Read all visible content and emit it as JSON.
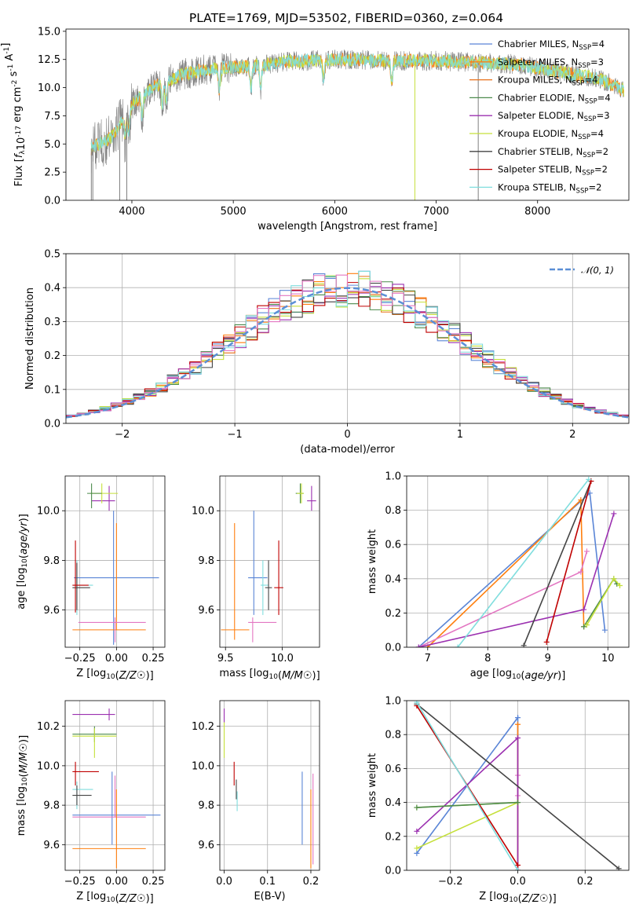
{
  "figure_title": "PLATE=1769, MJD=53502, FIBERID=0360, z=0.064",
  "colors": {
    "Chabrier MILES": "#5a85d6",
    "Salpeter MILES": "#ff7f0e",
    "Kroupa MILES": "#e8711a",
    "Chabrier ELODIE": "#4c8a4c",
    "Salpeter ELODIE": "#9b30b0",
    "Kroupa ELODIE": "#c5e03a",
    "Chabrier STELIB": "#444444",
    "Salpeter STELIB": "#c00000",
    "Kroupa STELIB": "#80dede",
    "pink": "#e377c2",
    "normal": "#5b8fd6",
    "data": "#808080"
  },
  "chart_data": [
    {
      "id": "spectrum",
      "type": "line",
      "title": "PLATE=1769, MJD=53502, FIBERID=0360, z=0.064",
      "xlabel": "wavelength [Angstrom, rest frame]",
      "ylabel": "Flux [f_λ10^-17 erg cm^-2 s^-1 A^-1]",
      "xlim": [
        3350,
        8900
      ],
      "ylim": [
        0,
        15.2
      ],
      "xticks": [
        "4000",
        "5000",
        "6000",
        "7000",
        "8000"
      ],
      "yticks": [
        "0.0",
        "2.5",
        "5.0",
        "7.5",
        "10.0",
        "12.5",
        "15.0"
      ],
      "grid": false,
      "legend_position": "top-right",
      "legend": [
        {
          "label": "Chabrier MILES, N",
          "sub": "SSP",
          "suffix": "=4"
        },
        {
          "label": "Salpeter MILES, N",
          "sub": "SSP",
          "suffix": "=3"
        },
        {
          "label": "Kroupa MILES, N",
          "sub": "SSP",
          "suffix": "=4"
        },
        {
          "label": "Chabrier ELODIE, N",
          "sub": "SSP",
          "suffix": "=4"
        },
        {
          "label": "Salpeter ELODIE, N",
          "sub": "SSP",
          "suffix": "=3"
        },
        {
          "label": "Kroupa ELODIE, N",
          "sub": "SSP",
          "suffix": "=4"
        },
        {
          "label": "Chabrier STELIB, N",
          "sub": "SSP",
          "suffix": "=2"
        },
        {
          "label": "Salpeter STELIB, N",
          "sub": "SSP",
          "suffix": "=2"
        },
        {
          "label": "Kroupa STELIB, N",
          "sub": "SSP",
          "suffix": "=2"
        }
      ],
      "continuum": {
        "x": [
          3600,
          3800,
          4000,
          4200,
          4500,
          4800,
          5000,
          5200,
          5500,
          6000,
          6500,
          7000,
          7400,
          7800,
          8200,
          8600,
          8850
        ],
        "y": [
          4.6,
          5.6,
          8.5,
          10.0,
          11.2,
          11.7,
          11.8,
          11.9,
          12.3,
          12.5,
          12.4,
          12.4,
          12.2,
          12.1,
          11.4,
          10.8,
          9.8
        ]
      },
      "absorption_lines": [
        3934,
        3969,
        4102,
        4300,
        4340,
        4861,
        5175,
        5270,
        5890,
        6563
      ]
    },
    {
      "id": "residuals",
      "type": "bar",
      "xlabel": "(data-model)/error",
      "ylabel": "Normed distribution",
      "xlim": [
        -2.5,
        2.5
      ],
      "ylim": [
        0,
        0.5
      ],
      "xticks": [
        "−2",
        "−1",
        "0",
        "1",
        "2"
      ],
      "yticks": [
        "0.0",
        "0.1",
        "0.2",
        "0.3",
        "0.4",
        "0.5"
      ],
      "grid": true,
      "legend_position": "top-right",
      "normal_label": "𝒩(0, 1)",
      "bin_width": 0.1
    },
    {
      "id": "age_vs_Z",
      "type": "scatter",
      "xlabel": "Z [log10(Z/Z☉)]",
      "ylabel": "age [log10(age/yr)]",
      "xlim": [
        -0.35,
        0.33
      ],
      "ylim": [
        9.45,
        10.14
      ],
      "xticks": [
        "−0.25",
        "0.00",
        "0.25"
      ],
      "yticks": [
        "9.6",
        "9.8",
        "10.0"
      ],
      "grid": true,
      "crosses": [
        {
          "c": "Chabrier MILES",
          "x": -0.02,
          "y": 9.73,
          "xerr": [
            0.27,
            0.31
          ],
          "yerr": [
            0.27,
            0.27
          ]
        },
        {
          "c": "Salpeter MILES",
          "x": 0.0,
          "y": 9.52,
          "xerr": [
            0.3,
            0.2
          ],
          "yerr": [
            0.0,
            0.43
          ]
        },
        {
          "c": "pink",
          "x": -0.01,
          "y": 9.55,
          "xerr": [
            0.25,
            0.21
          ],
          "yerr": [
            0.08,
            0.02
          ]
        },
        {
          "c": "Salpeter ELODIE",
          "x": -0.05,
          "y": 10.04,
          "xerr": [
            0.12,
            0.04
          ],
          "yerr": [
            0.04,
            0.06
          ]
        },
        {
          "c": "Kroupa ELODIE",
          "x": -0.1,
          "y": 10.07,
          "xerr": [
            0.08,
            0.11
          ],
          "yerr": [
            0.04,
            0.04
          ]
        },
        {
          "c": "Chabrier ELODIE",
          "x": -0.17,
          "y": 10.07,
          "xerr": [
            0.03,
            0.07
          ],
          "yerr": [
            0.06,
            0.04
          ]
        },
        {
          "c": "Kroupa STELIB",
          "x": -0.27,
          "y": 9.7,
          "xerr": [
            0.03,
            0.11
          ],
          "yerr": [
            0.12,
            0.1
          ]
        },
        {
          "c": "Chabrier STELIB",
          "x": -0.27,
          "y": 9.69,
          "xerr": [
            0.03,
            0.09
          ],
          "yerr": [
            0.09,
            0.1
          ]
        },
        {
          "c": "Salpeter STELIB",
          "x": -0.28,
          "y": 9.7,
          "xerr": [
            0.02,
            0.09
          ],
          "yerr": [
            0.11,
            0.18
          ]
        }
      ]
    },
    {
      "id": "age_vs_mass",
      "type": "scatter",
      "xlabel": "mass [log10(M/M☉)]",
      "ylabel": "",
      "xlim": [
        9.45,
        10.33
      ],
      "ylim": [
        9.45,
        10.14
      ],
      "xticks": [
        "9.5",
        "10.0"
      ],
      "yticks": [
        "9.6",
        "9.8",
        "10.0"
      ],
      "grid": true,
      "crosses": [
        {
          "c": "Salpeter MILES",
          "x": 9.58,
          "y": 9.52,
          "xerr": [
            0.12,
            0.13
          ],
          "yerr": [
            0.04,
            0.43
          ]
        },
        {
          "c": "Chabrier MILES",
          "x": 9.75,
          "y": 9.73,
          "xerr": [
            0.05,
            0.12
          ],
          "yerr": [
            0.15,
            0.27
          ]
        },
        {
          "c": "pink",
          "x": 9.74,
          "y": 9.55,
          "xerr": [
            0.04,
            0.21
          ],
          "yerr": [
            0.08,
            0.02
          ]
        },
        {
          "c": "Kroupa STELIB",
          "x": 9.83,
          "y": 9.7,
          "xerr": [
            0.02,
            0.05
          ],
          "yerr": [
            0.12,
            0.1
          ]
        },
        {
          "c": "Chabrier STELIB",
          "x": 9.88,
          "y": 9.69,
          "xerr": [
            0.03,
            0.03
          ],
          "yerr": [
            0.09,
            0.11
          ]
        },
        {
          "c": "Salpeter STELIB",
          "x": 9.97,
          "y": 9.69,
          "xerr": [
            0.04,
            0.04
          ],
          "yerr": [
            0.11,
            0.19
          ]
        },
        {
          "c": "Chabrier ELODIE",
          "x": 10.16,
          "y": 10.07,
          "xerr": [
            0.04,
            0.03
          ],
          "yerr": [
            0.04,
            0.04
          ]
        },
        {
          "c": "Kroupa ELODIE",
          "x": 10.17,
          "y": 10.07,
          "xerr": [
            0.04,
            0.02
          ],
          "yerr": [
            0.04,
            0.04
          ]
        },
        {
          "c": "Salpeter ELODIE",
          "x": 10.26,
          "y": 10.04,
          "xerr": [
            0.04,
            0.04
          ],
          "yerr": [
            0.04,
            0.06
          ]
        }
      ]
    },
    {
      "id": "weight_vs_age",
      "type": "line",
      "xlabel": "age [log10(age/yr)]",
      "ylabel": "mass weight",
      "xlim": [
        6.65,
        10.35
      ],
      "ylim": [
        0,
        1.0
      ],
      "xticks": [
        "7",
        "8",
        "9",
        "10"
      ],
      "yticks": [
        "0.0",
        "0.2",
        "0.4",
        "0.6",
        "0.8",
        "1.0"
      ],
      "grid": true,
      "series": [
        {
          "c": "Chabrier MILES",
          "x": [
            6.85,
            9.7,
            9.95
          ],
          "y": [
            0.0,
            0.9,
            0.1
          ]
        },
        {
          "c": "Salpeter MILES",
          "x": [
            7.0,
            9.55,
            9.6
          ],
          "y": [
            0.0,
            0.86,
            0.12
          ]
        },
        {
          "c": "pink",
          "x": [
            6.85,
            9.55,
            9.65
          ],
          "y": [
            0.0,
            0.44,
            0.56
          ]
        },
        {
          "c": "Chabrier ELODIE",
          "x": [
            9.6,
            10.1,
            10.15
          ],
          "y": [
            0.12,
            0.4,
            0.37
          ]
        },
        {
          "c": "Salpeter ELODIE",
          "x": [
            6.85,
            9.6,
            10.1
          ],
          "y": [
            0.0,
            0.22,
            0.78
          ]
        },
        {
          "c": "Kroupa ELODIE",
          "x": [
            9.65,
            10.1,
            10.2
          ],
          "y": [
            0.13,
            0.4,
            0.36
          ]
        },
        {
          "c": "Chabrier STELIB",
          "x": [
            8.6,
            9.72
          ],
          "y": [
            0.01,
            0.97
          ]
        },
        {
          "c": "Salpeter STELIB",
          "x": [
            8.98,
            9.72
          ],
          "y": [
            0.03,
            0.97
          ]
        },
        {
          "c": "Kroupa STELIB",
          "x": [
            7.5,
            9.68
          ],
          "y": [
            0.0,
            0.98
          ]
        }
      ]
    },
    {
      "id": "mass_vs_Z",
      "type": "scatter",
      "xlabel": "Z [log10(Z/Z☉)]",
      "ylabel": "mass [log10(M/M☉)]",
      "xlim": [
        -0.35,
        0.33
      ],
      "ylim": [
        9.47,
        10.33
      ],
      "xticks": [
        "−0.25",
        "0.00",
        "0.25"
      ],
      "yticks": [
        "9.6",
        "9.8",
        "10.0",
        "10.2"
      ],
      "grid": true,
      "crosses": [
        {
          "c": "Salpeter ELODIE",
          "x": -0.05,
          "y": 10.26,
          "xerr": [
            0.25,
            0.04
          ],
          "yerr": [
            0.03,
            0.03
          ]
        },
        {
          "c": "Chabrier ELODIE",
          "x": -0.15,
          "y": 10.16,
          "xerr": [
            0.15,
            0.15
          ],
          "yerr": [
            0.04,
            0.04
          ]
        },
        {
          "c": "Kroupa ELODIE",
          "x": -0.15,
          "y": 10.15,
          "xerr": [
            0.15,
            0.15
          ],
          "yerr": [
            0.11,
            0.04
          ]
        },
        {
          "c": "Salpeter STELIB",
          "x": -0.28,
          "y": 9.97,
          "xerr": [
            0.02,
            0.16
          ],
          "yerr": [
            0.07,
            0.05
          ]
        },
        {
          "c": "Kroupa STELIB",
          "x": -0.27,
          "y": 9.88,
          "xerr": [
            0.03,
            0.11
          ],
          "yerr": [
            0.1,
            0.04
          ]
        },
        {
          "c": "Chabrier STELIB",
          "x": -0.27,
          "y": 9.85,
          "xerr": [
            0.03,
            0.1
          ],
          "yerr": [
            0.05,
            0.05
          ]
        },
        {
          "c": "Chabrier MILES",
          "x": -0.03,
          "y": 9.75,
          "xerr": [
            0.27,
            0.33
          ],
          "yerr": [
            0.15,
            0.22
          ]
        },
        {
          "c": "pink",
          "x": -0.01,
          "y": 9.74,
          "xerr": [
            0.29,
            0.21
          ],
          "yerr": [
            0.0,
            0.21
          ]
        },
        {
          "c": "Salpeter MILES",
          "x": 0.0,
          "y": 9.58,
          "xerr": [
            0.3,
            0.2
          ],
          "yerr": [
            0.1,
            0.3
          ]
        }
      ]
    },
    {
      "id": "mass_vs_ebv",
      "type": "scatter",
      "xlabel": "E(B-V)",
      "ylabel": "",
      "xlim": [
        -0.01,
        0.22
      ],
      "ylim": [
        9.47,
        10.33
      ],
      "xticks": [
        "0.0",
        "0.1",
        "0.2"
      ],
      "yticks": [
        "9.6",
        "9.8",
        "10.0",
        "10.2"
      ],
      "grid": true,
      "crosses": [
        {
          "c": "Salpeter ELODIE",
          "x": 0.0,
          "y": 10.26,
          "xerr": [
            0,
            0
          ],
          "yerr": [
            0.04,
            0.03
          ]
        },
        {
          "c": "Kroupa ELODIE",
          "x": 0.0,
          "y": 10.16,
          "xerr": [
            0,
            0
          ],
          "yerr": [
            0.12,
            0.06
          ]
        },
        {
          "c": "Salpeter STELIB",
          "x": 0.023,
          "y": 9.97,
          "xerr": [
            0,
            0
          ],
          "yerr": [
            0.07,
            0.05
          ]
        },
        {
          "c": "Chabrier STELIB",
          "x": 0.028,
          "y": 9.88,
          "xerr": [
            0,
            0
          ],
          "yerr": [
            0.05,
            0.05
          ]
        },
        {
          "c": "Kroupa STELIB",
          "x": 0.03,
          "y": 9.82,
          "xerr": [
            0,
            0
          ],
          "yerr": [
            0.05,
            0.05
          ]
        },
        {
          "c": "Chabrier MILES",
          "x": 0.18,
          "y": 9.8,
          "xerr": [
            0,
            0
          ],
          "yerr": [
            0.2,
            0.17
          ]
        },
        {
          "c": "Salpeter MILES",
          "x": 0.2,
          "y": 9.7,
          "xerr": [
            0,
            0
          ],
          "yerr": [
            0.22,
            0.18
          ]
        },
        {
          "c": "pink",
          "x": 0.205,
          "y": 9.76,
          "xerr": [
            0,
            0
          ],
          "yerr": [
            0.26,
            0.2
          ]
        }
      ]
    },
    {
      "id": "weight_vs_Z",
      "type": "line",
      "xlabel": "Z [log10(Z/Z☉)]",
      "ylabel": "mass weight",
      "xlim": [
        -0.33,
        0.33
      ],
      "ylim": [
        0,
        1.0
      ],
      "xticks": [
        "−0.2",
        "0.0",
        "0.2"
      ],
      "yticks": [
        "0.0",
        "0.2",
        "0.4",
        "0.6",
        "0.8",
        "1.0"
      ],
      "grid": true,
      "series": [
        {
          "c": "Chabrier MILES",
          "x": [
            -0.3,
            0.0,
            0.0
          ],
          "y": [
            0.1,
            0.9,
            0.0
          ]
        },
        {
          "c": "Salpeter MILES",
          "x": [
            0.0,
            0.0
          ],
          "y": [
            0.0,
            0.86
          ]
        },
        {
          "c": "pink",
          "x": [
            0.0,
            0.0
          ],
          "y": [
            0.44,
            0.56
          ]
        },
        {
          "c": "Salpeter ELODIE",
          "x": [
            -0.3,
            0.0,
            0.0
          ],
          "y": [
            0.23,
            0.78,
            0.0
          ]
        },
        {
          "c": "Kroupa ELODIE",
          "x": [
            -0.3,
            0.0,
            -0.3
          ],
          "y": [
            0.37,
            0.4,
            0.13
          ]
        },
        {
          "c": "Chabrier ELODIE",
          "x": [
            -0.3,
            0.0
          ],
          "y": [
            0.37,
            0.4
          ]
        },
        {
          "c": "Chabrier STELIB",
          "x": [
            -0.3,
            0.3
          ],
          "y": [
            0.98,
            0.01
          ]
        },
        {
          "c": "Salpeter STELIB",
          "x": [
            -0.3,
            0.0
          ],
          "y": [
            0.97,
            0.03
          ]
        },
        {
          "c": "Kroupa STELIB",
          "x": [
            -0.3,
            0.0
          ],
          "y": [
            0.99,
            0.0
          ]
        }
      ]
    }
  ]
}
